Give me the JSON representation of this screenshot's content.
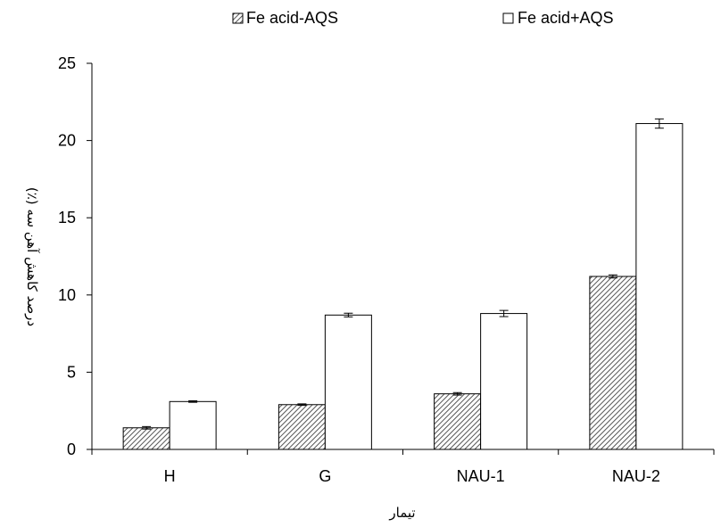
{
  "chart_data": {
    "type": "bar",
    "title": "",
    "xlabel": "تیمار",
    "ylabel": "درصد کاهش آهن سه (٪)",
    "categories": [
      "H",
      "G",
      "NAU-1",
      "NAU-2"
    ],
    "ylim": [
      0,
      25
    ],
    "yticks": [
      0,
      5,
      10,
      15,
      20,
      25
    ],
    "legend_position": "top",
    "series": [
      {
        "name": "Fe acid-AQS",
        "pattern": "diagonal-hatch",
        "color": "#000000",
        "values": [
          1.4,
          2.9,
          3.6,
          11.2
        ],
        "errors": [
          0.08,
          0.05,
          0.08,
          0.1
        ]
      },
      {
        "name": "Fe acid+AQS",
        "pattern": "none",
        "color": "#ffffff",
        "values": [
          3.1,
          8.7,
          8.8,
          21.1
        ],
        "errors": [
          0.05,
          0.12,
          0.2,
          0.3
        ]
      }
    ]
  }
}
